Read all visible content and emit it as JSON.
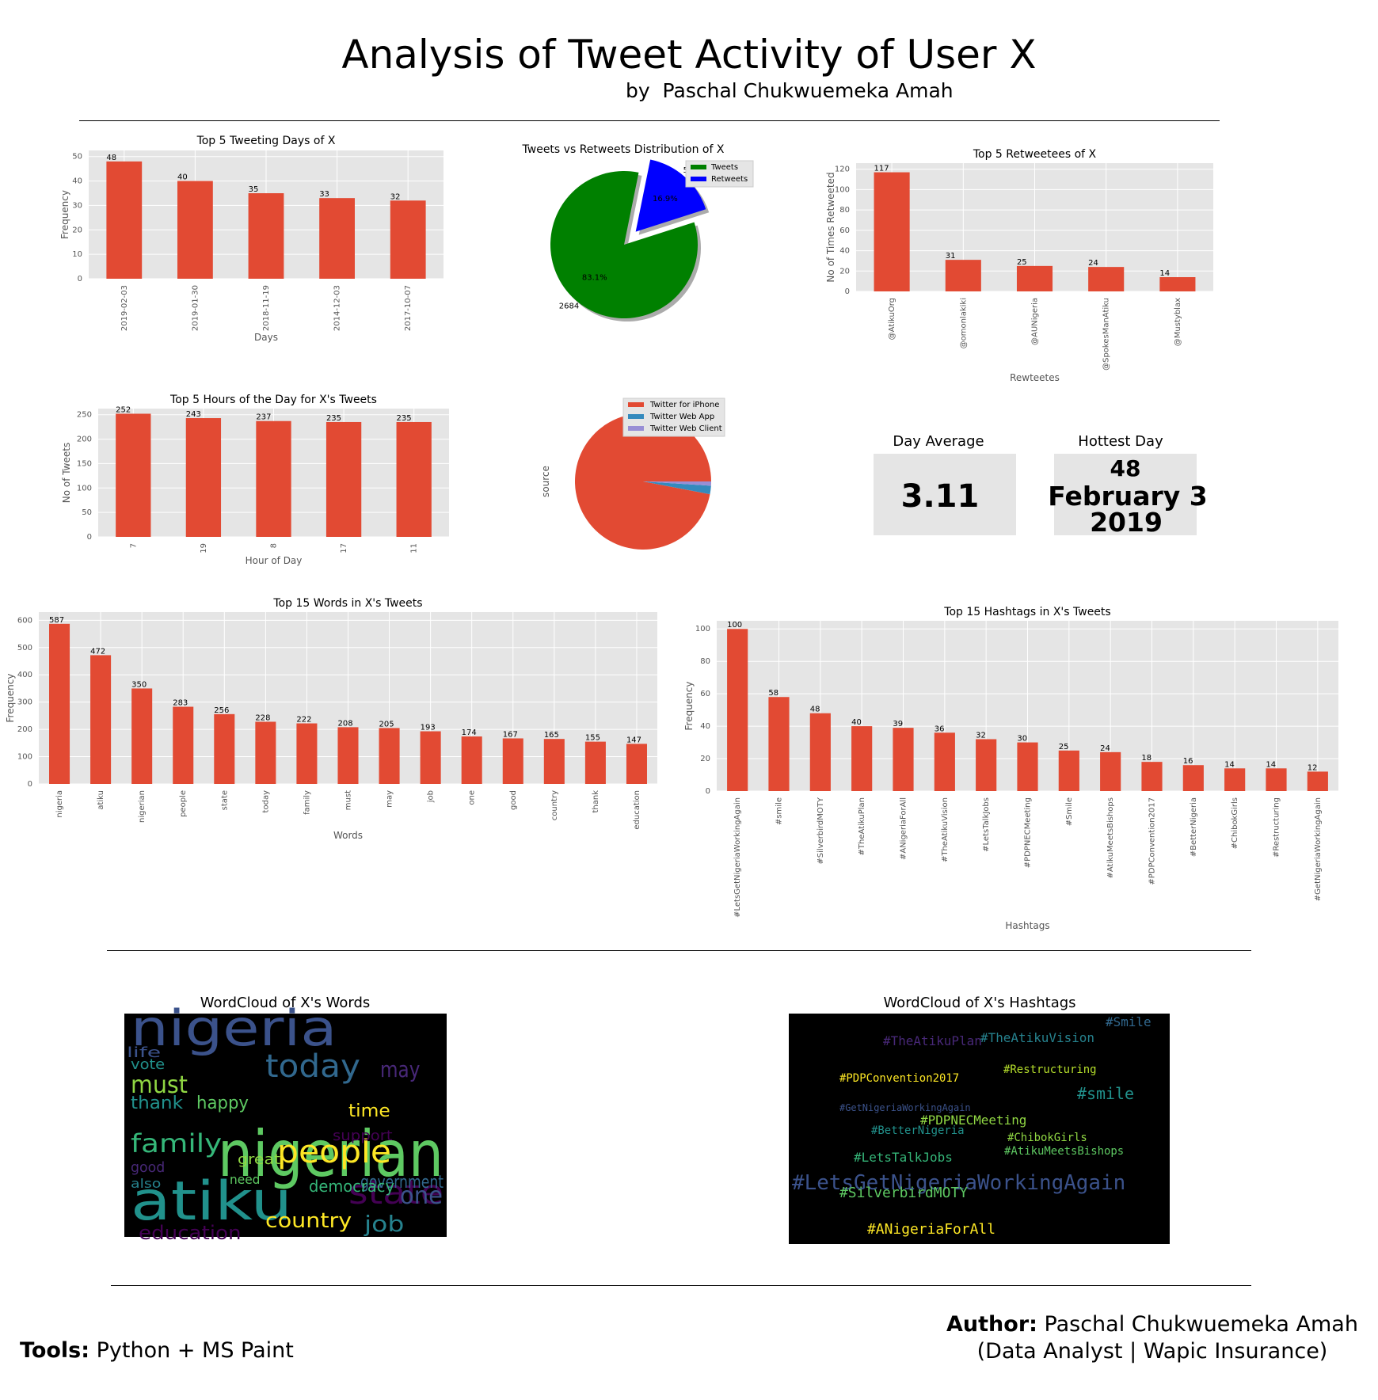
{
  "header": {
    "title": "Analysis of Tweet Activity of User X",
    "byline": "by  Paschal Chukwuemeka Amah"
  },
  "footer": {
    "tools_label": "Tools:",
    "tools_value": " Python + MS Paint",
    "author_label": "Author:",
    "author_name": " Paschal Chukwuemeka Amah",
    "author_role": "(Data Analyst | Wapic Insurance)"
  },
  "kpis": {
    "day_average": {
      "label": "Day Average",
      "value": "3.11"
    },
    "hottest_day": {
      "label": "Hottest Day",
      "count": "48",
      "date": "February 3",
      "year": "2019"
    }
  },
  "wordclouds": {
    "words_title": "WordCloud of X's Words",
    "hashtags_title": "WordCloud of X's Hashtags",
    "words": [
      "nigeria",
      "atiku",
      "nigerian",
      "people",
      "state",
      "today",
      "family",
      "must",
      "may",
      "job",
      "one",
      "thank",
      "happy",
      "country",
      "education",
      "government",
      "democracy",
      "great",
      "good",
      "also",
      "life",
      "vote",
      "need",
      "time",
      "support"
    ],
    "hashtags": [
      "#LetsGetNigeriaWorkingAgain",
      "#smile",
      "#SilverbirdMOTY",
      "#TheAtikuPlan",
      "#ANigeriaForAll",
      "#TheAtikuVision",
      "#LetsTalkJobs",
      "#PDPNECMeeting",
      "#Smile",
      "#AtikuMeetsBishops",
      "#PDPConvention2017",
      "#BetterNigeria",
      "#ChibokGirls",
      "#Restructuring",
      "#GetNigeriaWorkingAgain"
    ]
  },
  "colors": {
    "bar": "#E24A33",
    "grid_bg": "#E5E5E5",
    "tweets": "#008000",
    "retweets": "#0000FF",
    "iphone": "#E24A33",
    "webapp": "#348ABD",
    "webclient": "#988ED5"
  },
  "chart_data": [
    {
      "id": "top-days",
      "type": "bar",
      "title": "Top 5 Tweeting Days of X",
      "xlabel": "Days",
      "ylabel": "Frequency",
      "ylim": [
        0,
        50
      ],
      "yticks": [
        0,
        10,
        20,
        30,
        40,
        50
      ],
      "categories": [
        "2019-02-03",
        "2019-01-30",
        "2018-11-19",
        "2014-12-03",
        "2017-10-07"
      ],
      "values": [
        48,
        40,
        35,
        33,
        32
      ],
      "grid": true,
      "tick_rotation": "vertical"
    },
    {
      "id": "tweets-vs-retweets",
      "type": "pie",
      "title": "Tweets vs Retweets Distribution of X",
      "labels": [
        "Tweets",
        "Retweets"
      ],
      "values": [
        2684,
        545
      ],
      "percent_labels": [
        "83.1%",
        "16.9%"
      ],
      "legend": "top-right",
      "exploded": "Retweets"
    },
    {
      "id": "top-retweetees",
      "type": "bar",
      "title": "Top 5 Retweetees of X",
      "xlabel": "Rewteetes",
      "ylabel": "No of Times Retweeted",
      "ylim": [
        0,
        120
      ],
      "yticks": [
        0,
        20,
        40,
        60,
        80,
        100,
        120
      ],
      "categories": [
        "@AtikuOrg",
        "@omonlakiki",
        "@AUNigeria",
        "@SpokesManAtiku",
        "@Mustyblax"
      ],
      "values": [
        117,
        31,
        25,
        24,
        14
      ],
      "grid": true,
      "tick_rotation": "vertical"
    },
    {
      "id": "top-hours",
      "type": "bar",
      "title": "Top 5 Hours of the Day for X's Tweets",
      "xlabel": "Hour of Day",
      "ylabel": "No of Tweets",
      "ylim": [
        0,
        250
      ],
      "yticks": [
        0,
        50,
        100,
        150,
        200,
        250
      ],
      "categories": [
        "7",
        "19",
        "8",
        "17",
        "11"
      ],
      "values": [
        252,
        243,
        237,
        235,
        235
      ],
      "grid": true,
      "tick_rotation": "vertical"
    },
    {
      "id": "source",
      "type": "pie",
      "ylabel": "source",
      "labels": [
        "Twitter for iPhone",
        "Twitter Web App",
        "Twitter Web Client"
      ],
      "values": [
        97,
        2,
        1
      ],
      "legend": "top-right"
    },
    {
      "id": "top-words",
      "type": "bar",
      "title": "Top 15 Words in X's Tweets",
      "xlabel": "Words",
      "ylabel": "Frequency",
      "ylim": [
        0,
        600
      ],
      "yticks": [
        0,
        100,
        200,
        300,
        400,
        500,
        600
      ],
      "categories": [
        "nigeria",
        "atiku",
        "nigerian",
        "people",
        "state",
        "today",
        "family",
        "must",
        "may",
        "job",
        "one",
        "good",
        "country",
        "thank",
        "education"
      ],
      "values": [
        587,
        472,
        350,
        283,
        256,
        228,
        222,
        208,
        205,
        193,
        174,
        167,
        165,
        155,
        147
      ],
      "grid": true,
      "tick_rotation": "vertical"
    },
    {
      "id": "top-hashtags",
      "type": "bar",
      "title": "Top 15 Hashtags in X's Tweets",
      "xlabel": "Hashtags",
      "ylabel": "Frequency",
      "ylim": [
        0,
        100
      ],
      "yticks": [
        0,
        20,
        40,
        60,
        80,
        100
      ],
      "categories": [
        "#LetsGetNigeriaWorkingAgain",
        "#smile",
        "#SilverbirdMOTY",
        "#TheAtikuPlan",
        "#ANigeriaForAll",
        "#TheAtikuVision",
        "#LetsTalkJobs",
        "#PDPNECMeeting",
        "#Smile",
        "#AtikuMeetsBishops",
        "#PDPConvention2017",
        "#BetterNigeria",
        "#ChibokGirls",
        "#Restructuring",
        "#GetNigeriaWorkingAgain"
      ],
      "values": [
        100,
        58,
        48,
        40,
        39,
        36,
        32,
        30,
        25,
        24,
        18,
        16,
        14,
        14,
        12
      ],
      "grid": true,
      "tick_rotation": "vertical"
    }
  ]
}
